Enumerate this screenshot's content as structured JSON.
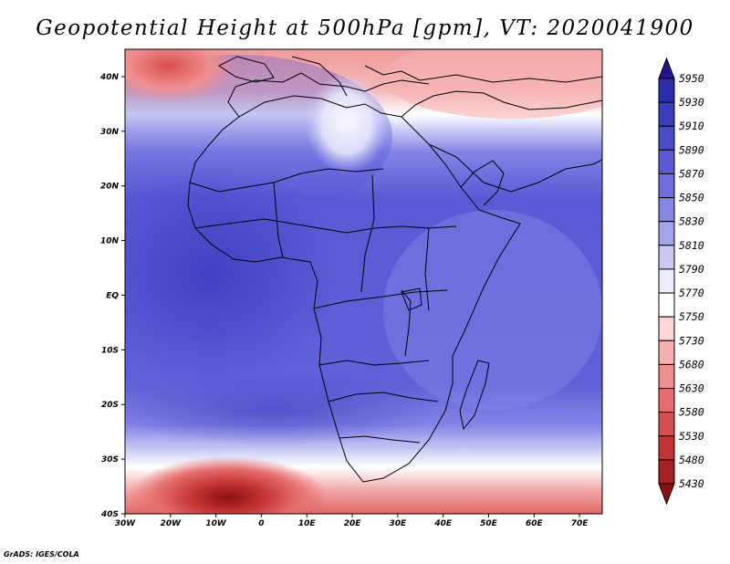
{
  "title": "Geopotential Height at 500hPa [gpm], VT: 2020041900",
  "credit": "GrADS: IGES/COLA",
  "x_ticks": [
    "30W",
    "20W",
    "10W",
    "0",
    "10E",
    "20E",
    "30E",
    "40E",
    "50E",
    "60E",
    "70E"
  ],
  "y_ticks": [
    "40N",
    "30N",
    "20N",
    "10N",
    "EQ",
    "10S",
    "20S",
    "30S",
    "40S"
  ],
  "colorbar": {
    "levels": [
      "5950",
      "5930",
      "5910",
      "5890",
      "5870",
      "5850",
      "5830",
      "5810",
      "5790",
      "5770",
      "5750",
      "5730",
      "5680",
      "5630",
      "5580",
      "5530",
      "5480",
      "5430"
    ],
    "colors": [
      "#26138f",
      "#2d2db0",
      "#3c3cbe",
      "#4a4acb",
      "#5a5ad6",
      "#6d6de0",
      "#8585e6",
      "#a3a3ee",
      "#c8c8f5",
      "#ececfb",
      "#ffffff",
      "#fbd6d6",
      "#f6b0b0",
      "#ef8e8e",
      "#e56d6d",
      "#d94e4e",
      "#c53333",
      "#a82020",
      "#8b1010"
    ]
  },
  "map_data": {
    "region": {
      "lon_min": -30,
      "lon_max": 75,
      "lat_min": -40,
      "lat_max": 45
    },
    "field": "Geopotential Height at 500hPa",
    "units": "gpm",
    "valid_time": "2020041900"
  }
}
